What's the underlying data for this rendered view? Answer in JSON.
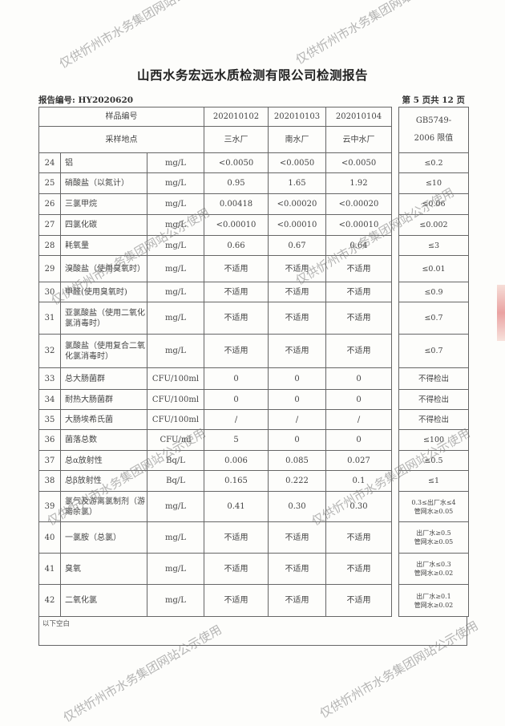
{
  "title": "山西水务宏远水质检测有限公司检测报告",
  "report_no": "报告编号: HY2020620",
  "page_info": "第 5 页共 12 页",
  "watermark": "仅供忻州市水务集团网站公示使用",
  "header": {
    "sample_no_label": "样品编号",
    "site_label": "采样地点",
    "samples": [
      {
        "no": "202010102",
        "site": "三水厂"
      },
      {
        "no": "202010103",
        "site": "南水厂"
      },
      {
        "no": "202010104",
        "site": "云中水厂"
      }
    ],
    "limit_label_1": "GB5749-",
    "limit_label_2": "2006 限值"
  },
  "rows": [
    {
      "n": "24",
      "name": "铝",
      "unit": "mg/L",
      "v": [
        "<0.0050",
        "<0.0050",
        "<0.0050"
      ],
      "limit": "≤0.2"
    },
    {
      "n": "25",
      "name": "硝酸盐（以氮计）",
      "unit": "mg/L",
      "v": [
        "0.95",
        "1.65",
        "1.92"
      ],
      "limit": "≤10"
    },
    {
      "n": "26",
      "name": "三氯甲烷",
      "unit": "mg/L",
      "v": [
        "0.00418",
        "<0.00020",
        "<0.00020"
      ],
      "limit": "≤0.06"
    },
    {
      "n": "27",
      "name": "四氯化碳",
      "unit": "mg/L",
      "v": [
        "<0.00010",
        "<0.00010",
        "<0.00010"
      ],
      "limit": "≤0.002"
    },
    {
      "n": "28",
      "name": "耗氧量",
      "unit": "mg/L",
      "v": [
        "0.66",
        "0.67",
        "0.64"
      ],
      "limit": "≤3"
    },
    {
      "n": "29",
      "name": "溴酸盐（使用臭氧时）",
      "unit": "mg/L",
      "v": [
        "不适用",
        "不适用",
        "不适用"
      ],
      "limit": "≤0.01"
    },
    {
      "n": "30",
      "name": "甲醛(使用臭氧时)",
      "unit": "mg/L",
      "v": [
        "不适用",
        "不适用",
        "不适用"
      ],
      "limit": "≤0.9"
    },
    {
      "n": "31",
      "name": "亚氯酸盐（使用二氧化氯消毒时）",
      "unit": "mg/L",
      "v": [
        "不适用",
        "不适用",
        "不适用"
      ],
      "limit": "≤0.7"
    },
    {
      "n": "32",
      "name": "氯酸盐（使用复合二氧化氯消毒时）",
      "unit": "mg/L",
      "v": [
        "不适用",
        "不适用",
        "不适用"
      ],
      "limit": "≤0.7"
    },
    {
      "n": "33",
      "name": "总大肠菌群",
      "unit": "CFU/100ml",
      "v": [
        "0",
        "0",
        "0"
      ],
      "limit": "不得检出"
    },
    {
      "n": "34",
      "name": "耐热大肠菌群",
      "unit": "CFU/100ml",
      "v": [
        "0",
        "0",
        "0"
      ],
      "limit": "不得检出"
    },
    {
      "n": "35",
      "name": "大肠埃希氏菌",
      "unit": "CFU/100ml",
      "v": [
        "/",
        "/",
        "/"
      ],
      "limit": "不得检出"
    },
    {
      "n": "36",
      "name": "菌落总数",
      "unit": "CFU/ml",
      "v": [
        "5",
        "0",
        "0"
      ],
      "limit": "≤100"
    },
    {
      "n": "37",
      "name": "总α放射性",
      "unit": "Bq/L",
      "v": [
        "0.006",
        "0.085",
        "0.027"
      ],
      "limit": "≤0.5"
    },
    {
      "n": "38",
      "name": "总β放射性",
      "unit": "Bq/L",
      "v": [
        "0.165",
        "0.222",
        "0.1"
      ],
      "limit": "≤1"
    },
    {
      "n": "39",
      "name": "氯气及游离氯制剂（游离余氯）",
      "unit": "mg/L",
      "v": [
        "0.41",
        "0.30",
        "0.30"
      ],
      "limit": "0.3≤出厂水≤4",
      "limit2": "管网水≥0.05"
    },
    {
      "n": "40",
      "name": "一氯胺（总氯）",
      "unit": "mg/L",
      "v": [
        "不适用",
        "不适用",
        "不适用"
      ],
      "limit": "出厂水≥0.5",
      "limit2": "管网水≥0.05"
    },
    {
      "n": "41",
      "name": "臭氧",
      "unit": "mg/L",
      "v": [
        "不适用",
        "不适用",
        "不适用"
      ],
      "limit": "出厂水≤0.3",
      "limit2": "管网水≥0.02"
    },
    {
      "n": "42",
      "name": "二氧化氯",
      "unit": "mg/L",
      "v": [
        "不适用",
        "不适用",
        "不适用"
      ],
      "limit": "出厂水≥0.1",
      "limit2": "管网水≥0.02"
    }
  ],
  "footer_note": "以下空白"
}
